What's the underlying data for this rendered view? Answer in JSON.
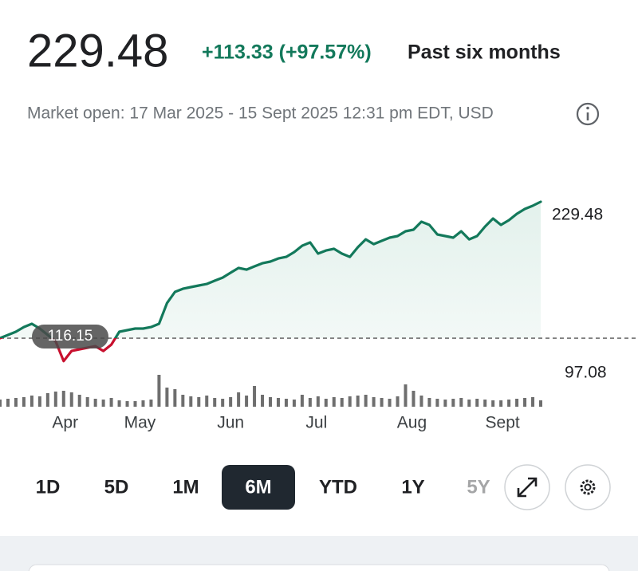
{
  "header": {
    "price": "229.48",
    "change": "+113.33 (+97.57%)",
    "period": "Past six months",
    "status": "Market open: 17 Mar 2025 - 15 Sept 2025 12:31 pm EDT, USD"
  },
  "chart_data": {
    "type": "line",
    "x": [
      0,
      1,
      2,
      3,
      4,
      5,
      6,
      7,
      8,
      9,
      10,
      11,
      12,
      13,
      14,
      15,
      16,
      17,
      18,
      19,
      20,
      21,
      22,
      23,
      24,
      25,
      26,
      27,
      28,
      29,
      30,
      31,
      32,
      33,
      34,
      35,
      36,
      37,
      38,
      39,
      40,
      41,
      42,
      43,
      44,
      45,
      46,
      47,
      48,
      49,
      50,
      51,
      52,
      53,
      54,
      55,
      56,
      57,
      58,
      59,
      60,
      61,
      62,
      63,
      64,
      65,
      66,
      67,
      68
    ],
    "values": [
      116.15,
      118.8,
      121.5,
      125.4,
      128.1,
      124.1,
      118.8,
      113.5,
      97.08,
      105.5,
      106.9,
      108.2,
      109.5,
      105.5,
      110.8,
      121.5,
      122.8,
      124.1,
      124.1,
      125.4,
      128.1,
      145.3,
      154.6,
      157.2,
      158.6,
      159.9,
      161.2,
      163.9,
      166.5,
      170.5,
      174.5,
      173.1,
      175.8,
      178.4,
      179.8,
      182.4,
      183.7,
      187.7,
      193.0,
      195.7,
      186.4,
      189.0,
      190.4,
      186.4,
      183.7,
      191.7,
      198.3,
      194.3,
      197.0,
      199.7,
      201.0,
      205.0,
      206.3,
      212.9,
      210.3,
      202.3,
      201.0,
      199.7,
      205.0,
      198.3,
      201.0,
      208.9,
      215.6,
      210.3,
      214.2,
      219.5,
      223.5,
      226.2,
      229.48
    ],
    "color": "#13795b",
    "color_below": "#c8102e",
    "area_color": "#e3f1ec",
    "reference": 116.15,
    "low": 97.08,
    "volume": [
      18,
      20,
      22,
      24,
      28,
      26,
      34,
      38,
      40,
      36,
      30,
      24,
      20,
      18,
      22,
      16,
      14,
      14,
      16,
      18,
      80,
      48,
      44,
      30,
      26,
      24,
      28,
      22,
      20,
      24,
      36,
      28,
      52,
      30,
      24,
      22,
      20,
      18,
      30,
      22,
      26,
      20,
      24,
      22,
      26,
      28,
      30,
      24,
      22,
      20,
      26,
      56,
      40,
      28,
      22,
      20,
      18,
      20,
      22,
      18,
      20,
      18,
      16,
      16,
      18,
      20,
      22,
      24,
      16
    ],
    "volume_color": "#6e6e6e",
    "vlim": [
      0,
      100
    ],
    "xlim": [
      0,
      68
    ],
    "ylim": [
      59.2,
      264.6
    ],
    "xticks": [
      {
        "value": 8.2,
        "label": "Apr"
      },
      {
        "value": 17.6,
        "label": "May"
      },
      {
        "value": 29.0,
        "label": "Jun"
      },
      {
        "value": 39.8,
        "label": "Jul"
      },
      {
        "value": 51.8,
        "label": "Aug"
      },
      {
        "value": 63.2,
        "label": "Sept"
      }
    ]
  },
  "ranges": {
    "items": [
      "1D",
      "5D",
      "1M",
      "6M",
      "YTD",
      "1Y",
      "5Y"
    ],
    "selected": 3
  }
}
